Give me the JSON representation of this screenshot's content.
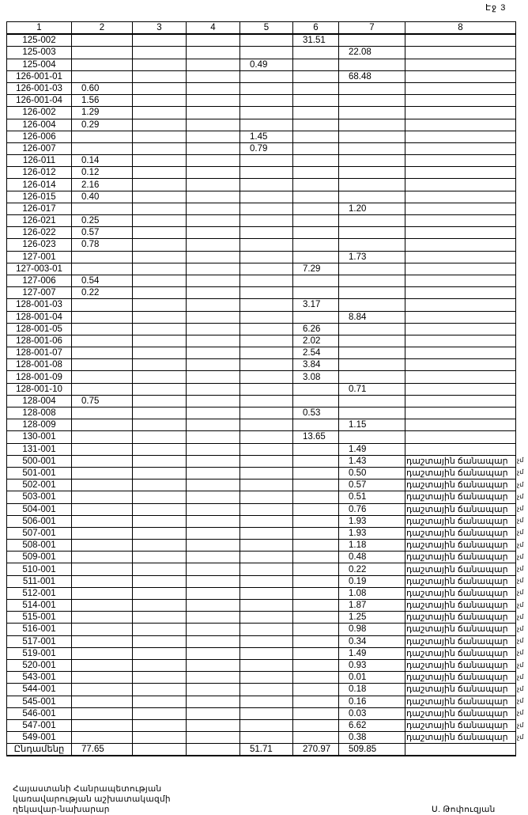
{
  "page_number": "Էջ 3",
  "table": {
    "headers": [
      "1",
      "2",
      "3",
      "4",
      "5",
      "6",
      "7",
      "8"
    ],
    "rows": [
      [
        "125-002",
        "",
        "",
        "",
        "",
        "31.51",
        "",
        ""
      ],
      [
        "125-003",
        "",
        "",
        "",
        "",
        "",
        "22.08",
        ""
      ],
      [
        "125-004",
        "",
        "",
        "",
        "0.49",
        "",
        "",
        ""
      ],
      [
        "126-001-01",
        "",
        "",
        "",
        "",
        "",
        "68.48",
        ""
      ],
      [
        "126-001-03",
        "0.60",
        "",
        "",
        "",
        "",
        "",
        ""
      ],
      [
        "126-001-04",
        "1.56",
        "",
        "",
        "",
        "",
        "",
        ""
      ],
      [
        "126-002",
        "1.29",
        "",
        "",
        "",
        "",
        "",
        ""
      ],
      [
        "126-004",
        "0.29",
        "",
        "",
        "",
        "",
        "",
        ""
      ],
      [
        "126-006",
        "",
        "",
        "",
        "1.45",
        "",
        "",
        ""
      ],
      [
        "126-007",
        "",
        "",
        "",
        "0.79",
        "",
        "",
        ""
      ],
      [
        "126-011",
        "0.14",
        "",
        "",
        "",
        "",
        "",
        ""
      ],
      [
        "126-012",
        "0.12",
        "",
        "",
        "",
        "",
        "",
        ""
      ],
      [
        "126-014",
        "2.16",
        "",
        "",
        "",
        "",
        "",
        ""
      ],
      [
        "126-015",
        "0.40",
        "",
        "",
        "",
        "",
        "",
        ""
      ],
      [
        "126-017",
        "",
        "",
        "",
        "",
        "",
        "1.20",
        ""
      ],
      [
        "126-021",
        "0.25",
        "",
        "",
        "",
        "",
        "",
        ""
      ],
      [
        "126-022",
        "0.57",
        "",
        "",
        "",
        "",
        "",
        ""
      ],
      [
        "126-023",
        "0.78",
        "",
        "",
        "",
        "",
        "",
        ""
      ],
      [
        "127-001",
        "",
        "",
        "",
        "",
        "",
        "1.73",
        ""
      ],
      [
        "127-003-01",
        "",
        "",
        "",
        "",
        "7.29",
        "",
        ""
      ],
      [
        "127-006",
        "0.54",
        "",
        "",
        "",
        "",
        "",
        ""
      ],
      [
        "127-007",
        "0.22",
        "",
        "",
        "",
        "",
        "",
        ""
      ],
      [
        "128-001-03",
        "",
        "",
        "",
        "",
        "3.17",
        "",
        ""
      ],
      [
        "128-001-04",
        "",
        "",
        "",
        "",
        "",
        "8.84",
        ""
      ],
      [
        "128-001-05",
        "",
        "",
        "",
        "",
        "6.26",
        "",
        ""
      ],
      [
        "128-001-06",
        "",
        "",
        "",
        "",
        "2.02",
        "",
        ""
      ],
      [
        "128-001-07",
        "",
        "",
        "",
        "",
        "2.54",
        "",
        ""
      ],
      [
        "128-001-08",
        "",
        "",
        "",
        "",
        "3.84",
        "",
        ""
      ],
      [
        "128-001-09",
        "",
        "",
        "",
        "",
        "3.08",
        "",
        ""
      ],
      [
        "128-001-10",
        "",
        "",
        "",
        "",
        "",
        "0.71",
        ""
      ],
      [
        "128-004",
        "0.75",
        "",
        "",
        "",
        "",
        "",
        ""
      ],
      [
        "128-008",
        "",
        "",
        "",
        "",
        "0.53",
        "",
        ""
      ],
      [
        "128-009",
        "",
        "",
        "",
        "",
        "",
        "1.15",
        ""
      ],
      [
        "130-001",
        "",
        "",
        "",
        "",
        "13.65",
        "",
        ""
      ],
      [
        "131-001",
        "",
        "",
        "",
        "",
        "",
        "1.49",
        ""
      ],
      [
        "500-001",
        "",
        "",
        "",
        "",
        "",
        "1.43",
        "դաշտային ճանապար"
      ],
      [
        "501-001",
        "",
        "",
        "",
        "",
        "",
        "0.50",
        "դաշտային ճանապար"
      ],
      [
        "502-001",
        "",
        "",
        "",
        "",
        "",
        "0.57",
        "դաշտային ճանապար"
      ],
      [
        "503-001",
        "",
        "",
        "",
        "",
        "",
        "0.51",
        "դաշտային ճանապար"
      ],
      [
        "504-001",
        "",
        "",
        "",
        "",
        "",
        "0.76",
        "դաշտային ճանապար"
      ],
      [
        "506-001",
        "",
        "",
        "",
        "",
        "",
        "1.93",
        "դաշտային ճանապար"
      ],
      [
        "507-001",
        "",
        "",
        "",
        "",
        "",
        "1.93",
        "դաշտային ճանապար"
      ],
      [
        "508-001",
        "",
        "",
        "",
        "",
        "",
        "1.18",
        "դաշտային ճանապար"
      ],
      [
        "509-001",
        "",
        "",
        "",
        "",
        "",
        "0.48",
        "դաշտային ճանապար"
      ],
      [
        "510-001",
        "",
        "",
        "",
        "",
        "",
        "0.22",
        "դաշտային ճանապար"
      ],
      [
        "511-001",
        "",
        "",
        "",
        "",
        "",
        "0.19",
        "դաշտային ճանապար"
      ],
      [
        "512-001",
        "",
        "",
        "",
        "",
        "",
        "1.08",
        "դաշտային ճանապար"
      ],
      [
        "514-001",
        "",
        "",
        "",
        "",
        "",
        "1.87",
        "դաշտային ճանապար"
      ],
      [
        "515-001",
        "",
        "",
        "",
        "",
        "",
        "1.25",
        "դաշտային ճանապար"
      ],
      [
        "516-001",
        "",
        "",
        "",
        "",
        "",
        "0.98",
        "դաշտային ճանապար"
      ],
      [
        "517-001",
        "",
        "",
        "",
        "",
        "",
        "0.34",
        "դաշտային ճանապար"
      ],
      [
        "519-001",
        "",
        "",
        "",
        "",
        "",
        "1.49",
        "դաշտային ճանապար"
      ],
      [
        "520-001",
        "",
        "",
        "",
        "",
        "",
        "0.93",
        "դաշտային ճանապար"
      ],
      [
        "543-001",
        "",
        "",
        "",
        "",
        "",
        "0.01",
        "դաշտային ճանապար"
      ],
      [
        "544-001",
        "",
        "",
        "",
        "",
        "",
        "0.18",
        "դաշտային ճանապար"
      ],
      [
        "545-001",
        "",
        "",
        "",
        "",
        "",
        "0.16",
        "դաշտային ճանապար"
      ],
      [
        "546-001",
        "",
        "",
        "",
        "",
        "",
        "0.03",
        "դաշտային ճանապար"
      ],
      [
        "547-001",
        "",
        "",
        "",
        "",
        "",
        "6.62",
        "դաշտային ճանապար"
      ],
      [
        "549-001",
        "",
        "",
        "",
        "",
        "",
        "0.38",
        "դաշտային ճանապար"
      ]
    ],
    "side_note": "չմ",
    "total": [
      "Ընդամենը",
      "77.65",
      "",
      "",
      "51.71",
      "270.97",
      "509.85",
      ""
    ]
  },
  "footer": {
    "position_lines": [
      "Հայաստանի Հանրապետության",
      "կառավարության աշխատակազմի",
      "ղեկավար-նախարար"
    ],
    "signatory": "Ս. Թոփուզյան"
  }
}
